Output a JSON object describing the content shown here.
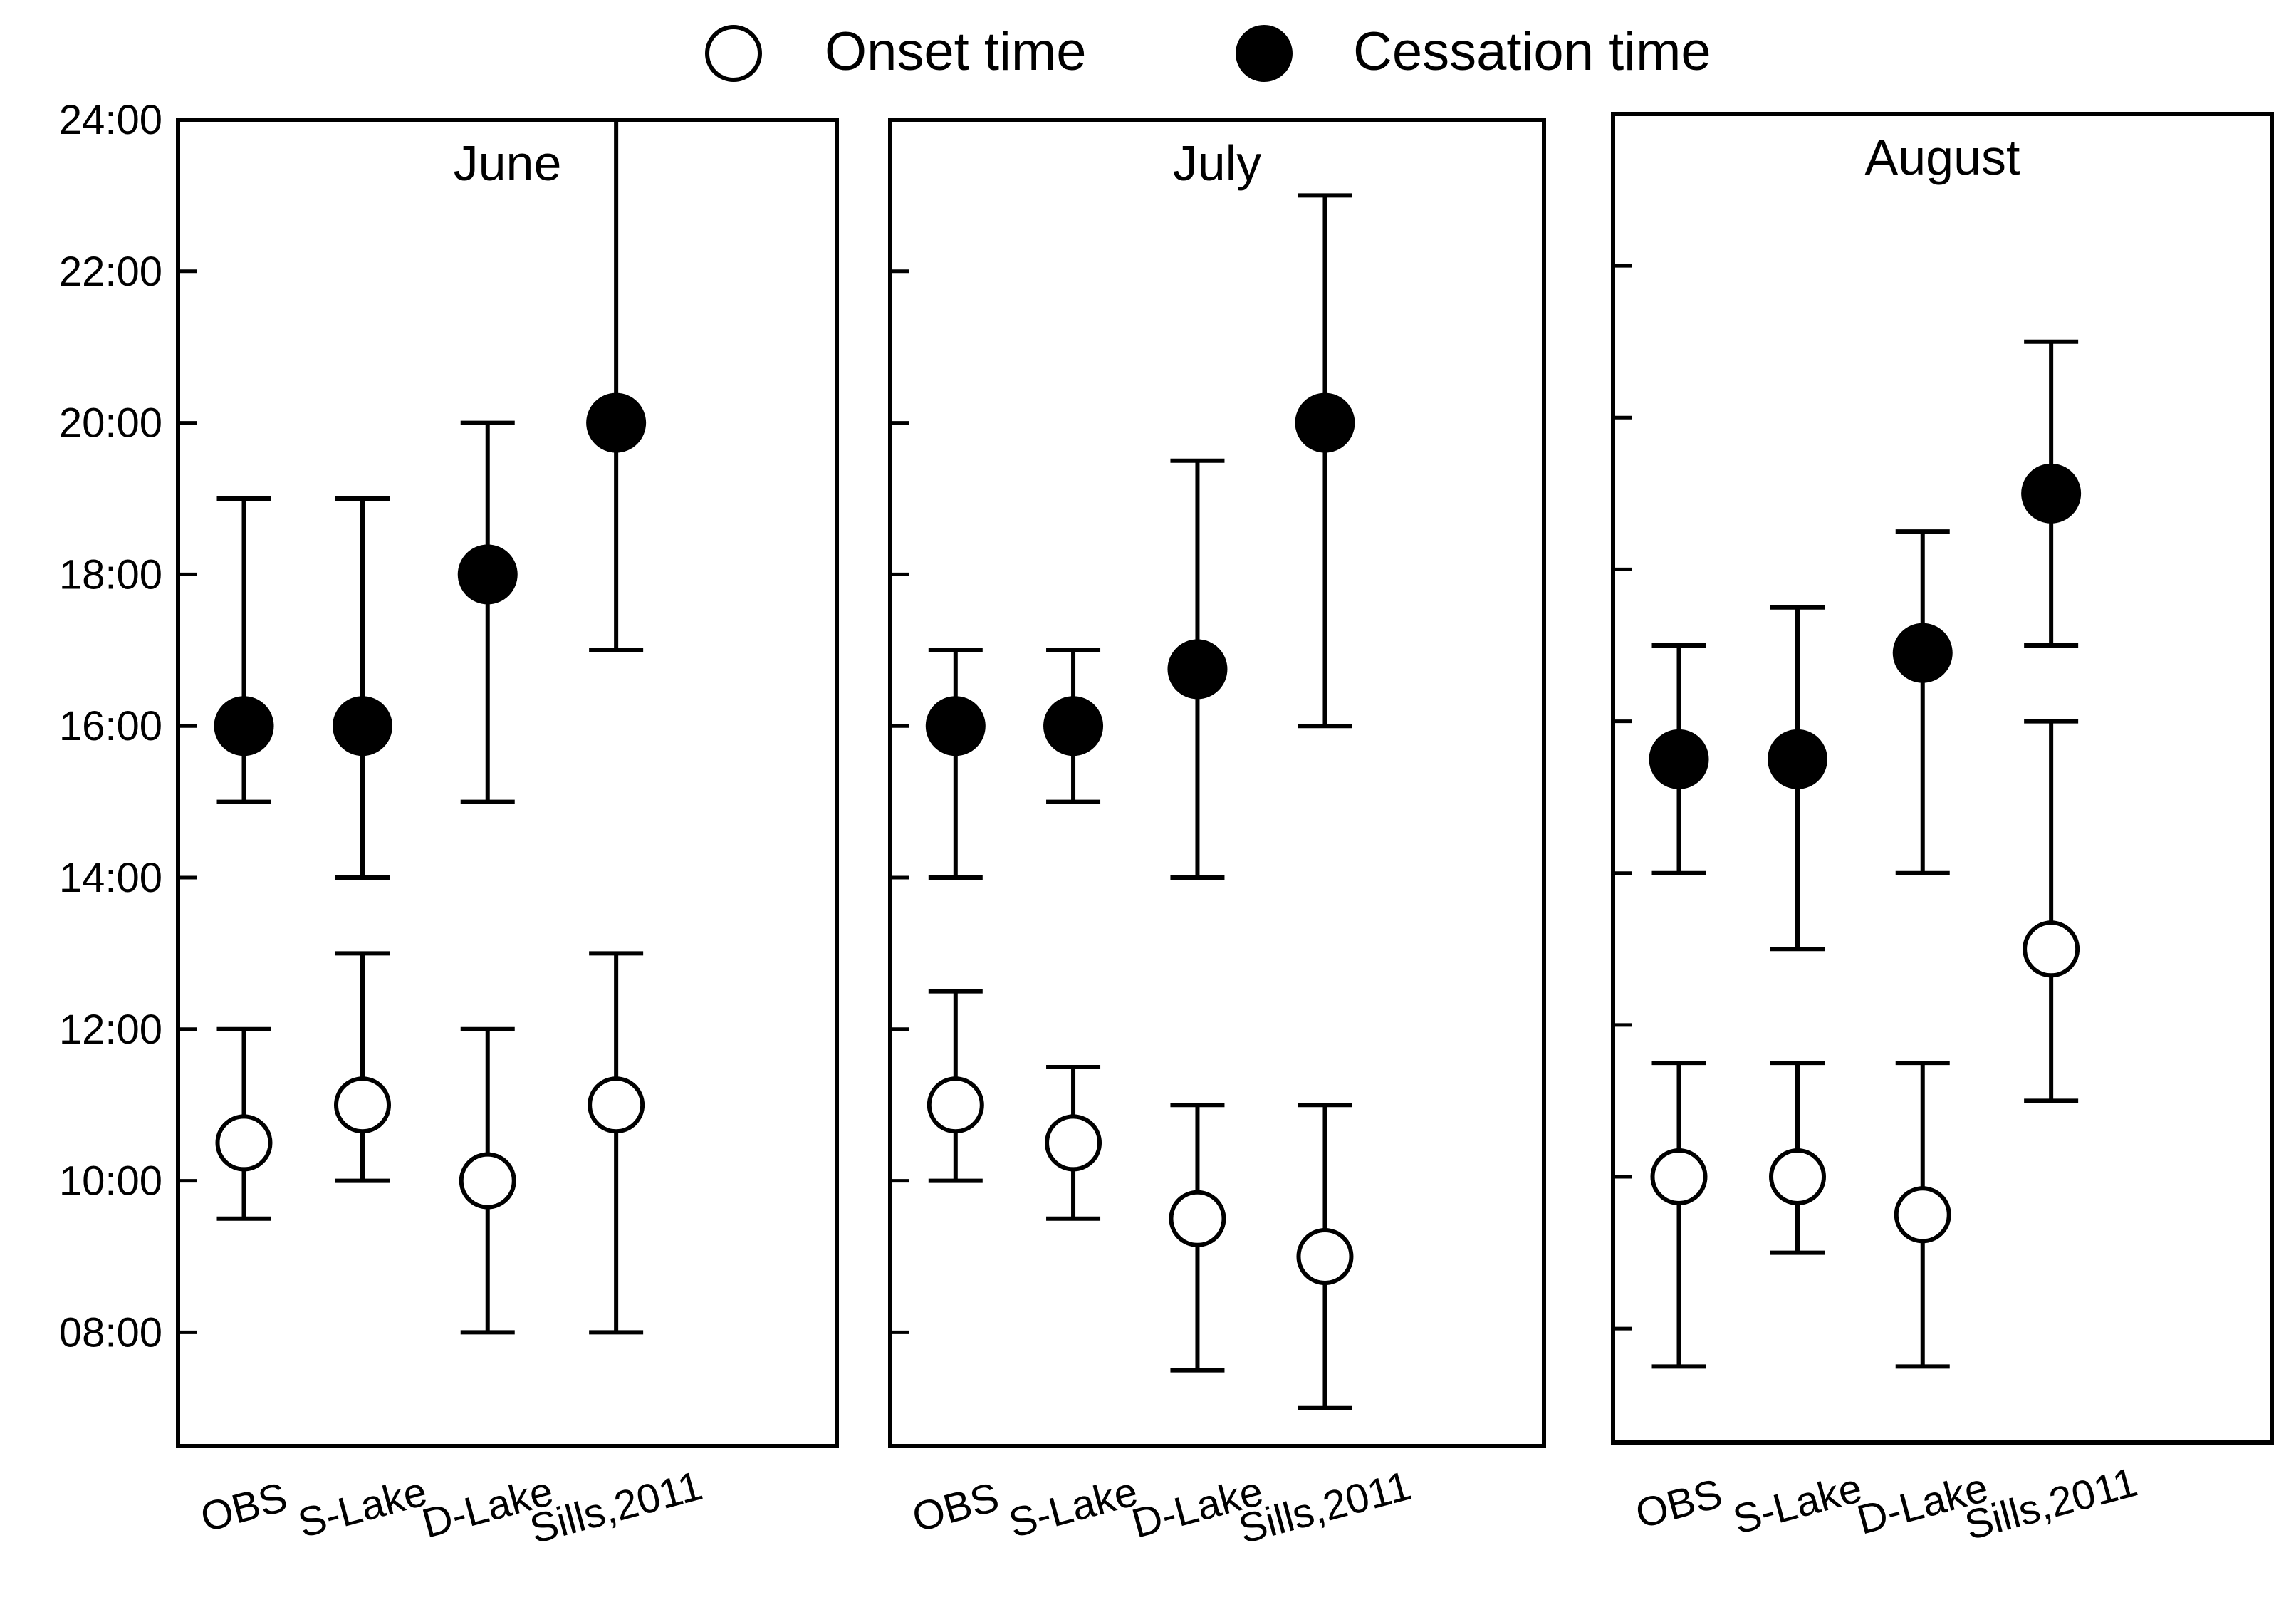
{
  "legend": {
    "onset_label": "Onset time",
    "cessation_label": "Cessation time"
  },
  "chart_data": {
    "type": "scatter",
    "y_tick_labels": [
      "08:00",
      "10:00",
      "12:00",
      "14:00",
      "16:00",
      "18:00",
      "20:00",
      "22:00",
      "24:00"
    ],
    "categories": [
      "OBS",
      "S-Lake",
      "D-Lake",
      "Sills,2011"
    ],
    "series_names": [
      "Onset time",
      "Cessation time"
    ],
    "legend_position": "top-center",
    "grid": false,
    "panels": [
      {
        "title": "June",
        "ylim": [
          6.5,
          24
        ],
        "onset": [
          {
            "category": "OBS",
            "mean": 10.5,
            "low": 9.5,
            "high": 12.0
          },
          {
            "category": "S-Lake",
            "mean": 11.0,
            "low": 10.0,
            "high": 13.0
          },
          {
            "category": "D-Lake",
            "mean": 10.0,
            "low": 8.0,
            "high": 12.0
          },
          {
            "category": "Sills,2011",
            "mean": 11.0,
            "low": 8.0,
            "high": 13.0
          }
        ],
        "cessation": [
          {
            "category": "OBS",
            "mean": 16.0,
            "low": 15.0,
            "high": 19.0
          },
          {
            "category": "S-Lake",
            "mean": 16.0,
            "low": 14.0,
            "high": 19.0
          },
          {
            "category": "D-Lake",
            "mean": 18.0,
            "low": 15.0,
            "high": 20.0
          },
          {
            "category": "Sills,2011",
            "mean": 20.0,
            "low": 17.0,
            "high": 24.0
          }
        ]
      },
      {
        "title": "July",
        "ylim": [
          6.5,
          24
        ],
        "onset": [
          {
            "category": "OBS",
            "mean": 11.0,
            "low": 10.0,
            "high": 12.5
          },
          {
            "category": "S-Lake",
            "mean": 10.5,
            "low": 9.5,
            "high": 11.5
          },
          {
            "category": "D-Lake",
            "mean": 9.5,
            "low": 7.5,
            "high": 11.0
          },
          {
            "category": "Sills,2011",
            "mean": 9.0,
            "low": 7.0,
            "high": 11.0
          }
        ],
        "cessation": [
          {
            "category": "OBS",
            "mean": 16.0,
            "low": 14.0,
            "high": 17.0
          },
          {
            "category": "S-Lake",
            "mean": 16.0,
            "low": 15.0,
            "high": 17.0
          },
          {
            "category": "D-Lake",
            "mean": 16.75,
            "low": 14.0,
            "high": 19.5
          },
          {
            "category": "Sills,2011",
            "mean": 20.0,
            "low": 16.0,
            "high": 23.0
          }
        ]
      },
      {
        "title": "August",
        "ylim": [
          6.5,
          24
        ],
        "onset": [
          {
            "category": "OBS",
            "mean": 10.0,
            "low": 7.5,
            "high": 11.5
          },
          {
            "category": "S-Lake",
            "mean": 10.0,
            "low": 9.0,
            "high": 11.5
          },
          {
            "category": "D-Lake",
            "mean": 9.5,
            "low": 7.5,
            "high": 11.5
          },
          {
            "category": "Sills,2011",
            "mean": 13.0,
            "low": 11.0,
            "high": 16.0
          }
        ],
        "cessation": [
          {
            "category": "OBS",
            "mean": 15.5,
            "low": 14.0,
            "high": 17.0
          },
          {
            "category": "S-Lake",
            "mean": 15.5,
            "low": 13.0,
            "high": 17.5
          },
          {
            "category": "D-Lake",
            "mean": 16.9,
            "low": 14.0,
            "high": 18.5
          },
          {
            "category": "Sills,2011",
            "mean": 19.0,
            "low": 17.0,
            "high": 21.0
          }
        ]
      }
    ]
  }
}
